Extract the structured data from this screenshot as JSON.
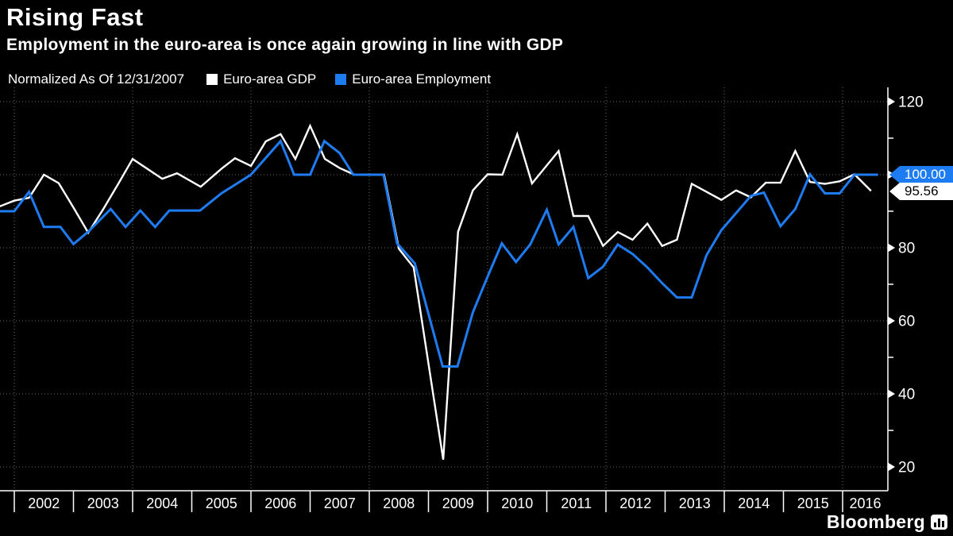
{
  "footer": {
    "brand": "Bloomberg"
  },
  "chart_data": {
    "type": "line",
    "title": "Rising Fast",
    "subtitle": "Employment in the euro-area is once again growing in line with GDP",
    "note": "Normalized As Of 12/31/2007",
    "legend_position": "top",
    "grid": true,
    "grid_color": "#6a6a6a",
    "axis_color": "#ffffff",
    "x_ticks": [
      2002,
      2003,
      2004,
      2005,
      2006,
      2007,
      2008,
      2009,
      2010,
      2011,
      2012,
      2013,
      2014,
      2015,
      2016
    ],
    "x_gridline_years": [
      2002,
      2004,
      2006,
      2008,
      2010,
      2012,
      2014,
      2016
    ],
    "y_axis": {
      "major_ticks": [
        20,
        40,
        60,
        80,
        100,
        120
      ],
      "minor_ticks": [
        30,
        50,
        70,
        90,
        110
      ],
      "ylim": [
        13.5,
        122.5
      ]
    },
    "series": [
      {
        "id": "gdp-line",
        "name": "Euro-area GDP",
        "color": "#ffffff",
        "width": 2.4,
        "end_label": "95.56",
        "points": [
          [
            2001.75,
            91.3
          ],
          [
            2002.0,
            92.9
          ],
          [
            2002.25,
            93.7
          ],
          [
            2002.5,
            100.0
          ],
          [
            2002.75,
            97.7
          ],
          [
            2003.0,
            91.0
          ],
          [
            2003.25,
            84.1
          ],
          [
            2003.5,
            90.5
          ],
          [
            2003.75,
            97.3
          ],
          [
            2004.0,
            104.3
          ],
          [
            2004.5,
            98.9
          ],
          [
            2004.75,
            100.4
          ],
          [
            2005.15,
            96.7
          ],
          [
            2005.5,
            101.6
          ],
          [
            2005.73,
            104.5
          ],
          [
            2006.0,
            102.4
          ],
          [
            2006.25,
            109.1
          ],
          [
            2006.5,
            111.1
          ],
          [
            2006.75,
            104.3
          ],
          [
            2007.0,
            113.4
          ],
          [
            2007.25,
            104.3
          ],
          [
            2007.5,
            101.8
          ],
          [
            2007.75,
            100.0
          ],
          [
            2008.25,
            100.0
          ],
          [
            2008.5,
            79.7
          ],
          [
            2008.75,
            74.6
          ],
          [
            2009.25,
            22.0
          ],
          [
            2009.5,
            84.4
          ],
          [
            2009.75,
            95.7
          ],
          [
            2010.0,
            100.1
          ],
          [
            2010.25,
            100.0
          ],
          [
            2010.5,
            111.1
          ],
          [
            2010.75,
            97.6
          ],
          [
            2011.2,
            106.5
          ],
          [
            2011.45,
            88.7
          ],
          [
            2011.7,
            88.7
          ],
          [
            2011.95,
            80.5
          ],
          [
            2012.2,
            84.3
          ],
          [
            2012.45,
            82.2
          ],
          [
            2012.7,
            86.6
          ],
          [
            2012.95,
            80.5
          ],
          [
            2013.2,
            82.2
          ],
          [
            2013.45,
            97.5
          ],
          [
            2013.95,
            93.1
          ],
          [
            2014.2,
            95.7
          ],
          [
            2014.45,
            93.8
          ],
          [
            2014.7,
            97.8
          ],
          [
            2014.95,
            97.8
          ],
          [
            2015.2,
            106.5
          ],
          [
            2015.45,
            98.0
          ],
          [
            2015.7,
            97.5
          ],
          [
            2015.95,
            98.2
          ],
          [
            2016.2,
            100.1
          ],
          [
            2016.48,
            95.56
          ]
        ]
      },
      {
        "id": "employment-line",
        "name": "Euro-area Employment",
        "color": "#1e7cf2",
        "width": 3,
        "end_label": "100.00",
        "points": [
          [
            2001.75,
            90.0
          ],
          [
            2002.0,
            90.0
          ],
          [
            2002.25,
            95.3
          ],
          [
            2002.5,
            85.7
          ],
          [
            2002.78,
            85.7
          ],
          [
            2003.0,
            81.0
          ],
          [
            2003.25,
            84.4
          ],
          [
            2003.63,
            90.6
          ],
          [
            2003.88,
            85.7
          ],
          [
            2004.13,
            90.2
          ],
          [
            2004.38,
            85.7
          ],
          [
            2004.62,
            90.2
          ],
          [
            2005.14,
            90.2
          ],
          [
            2005.5,
            94.9
          ],
          [
            2006.0,
            100.0
          ],
          [
            2006.5,
            109.2
          ],
          [
            2006.73,
            100.0
          ],
          [
            2007.0,
            100.0
          ],
          [
            2007.24,
            109.2
          ],
          [
            2007.5,
            105.9
          ],
          [
            2007.73,
            100.0
          ],
          [
            2008.24,
            100.0
          ],
          [
            2008.47,
            81.2
          ],
          [
            2008.77,
            75.7
          ],
          [
            2009.24,
            47.5
          ],
          [
            2009.49,
            47.5
          ],
          [
            2009.75,
            62.3
          ],
          [
            2010.0,
            72.1
          ],
          [
            2010.24,
            81.2
          ],
          [
            2010.48,
            76.1
          ],
          [
            2010.72,
            80.9
          ],
          [
            2011.0,
            90.4
          ],
          [
            2011.2,
            80.9
          ],
          [
            2011.45,
            85.7
          ],
          [
            2011.7,
            71.7
          ],
          [
            2011.95,
            74.8
          ],
          [
            2012.2,
            80.9
          ],
          [
            2012.45,
            78.3
          ],
          [
            2012.7,
            74.6
          ],
          [
            2012.95,
            70.3
          ],
          [
            2013.2,
            66.4
          ],
          [
            2013.45,
            66.4
          ],
          [
            2013.7,
            78.0
          ],
          [
            2013.95,
            84.8
          ],
          [
            2014.45,
            94.2
          ],
          [
            2014.67,
            95.1
          ],
          [
            2014.95,
            85.9
          ],
          [
            2015.2,
            90.6
          ],
          [
            2015.45,
            100.1
          ],
          [
            2015.7,
            94.9
          ],
          [
            2015.95,
            94.9
          ],
          [
            2016.2,
            100.0
          ],
          [
            2016.6,
            100.0
          ]
        ]
      }
    ]
  }
}
